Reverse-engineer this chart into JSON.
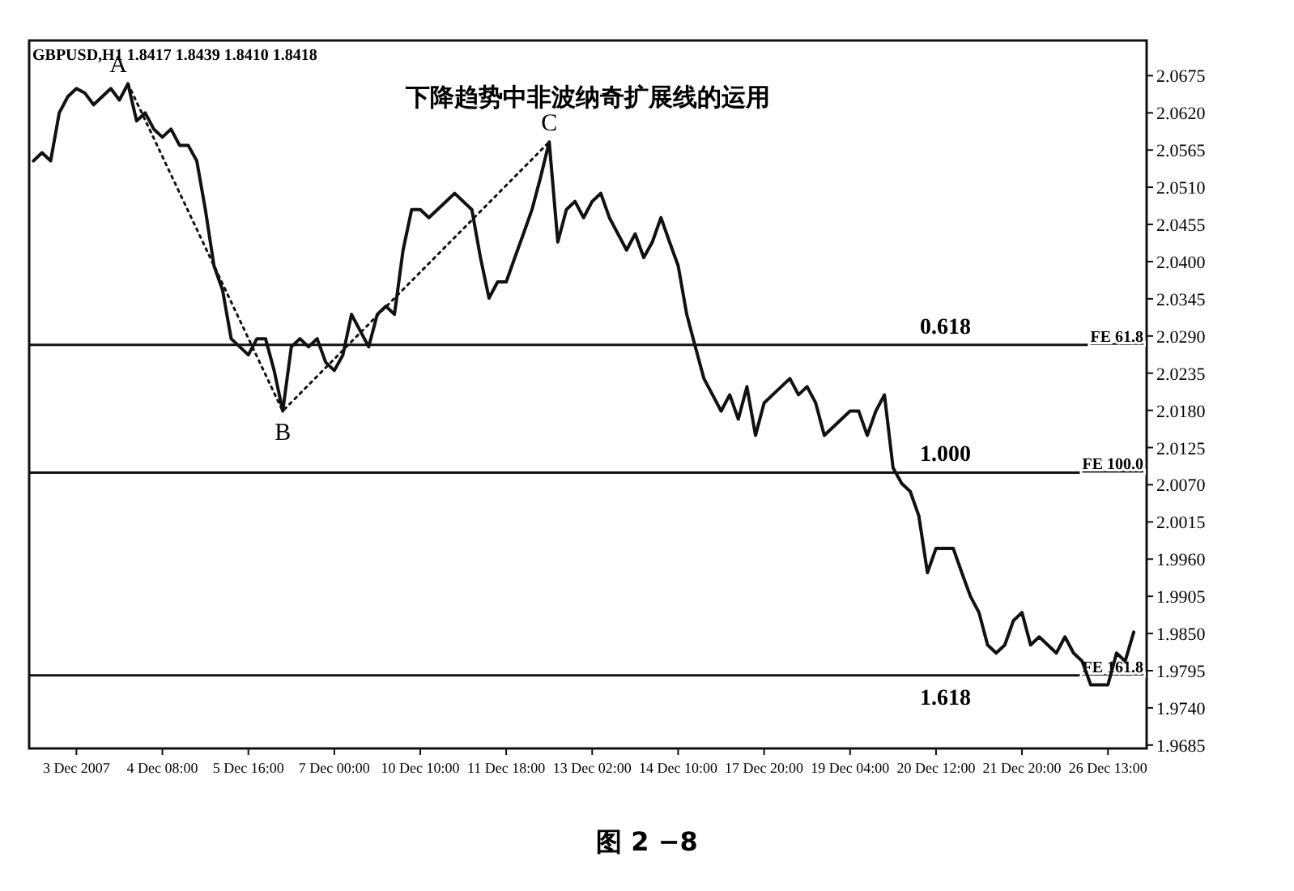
{
  "chart_data": {
    "type": "line",
    "title": "下降趋势中非波纳奇扩展线的运用",
    "subtitle": "GBPUSD,H1 1.8417 1.8439 1.8410 1.8418",
    "annotations": [
      {
        "text": "A",
        "y": 2.0663
      },
      {
        "text": "B",
        "y": 2.0179
      },
      {
        "text": "C",
        "y": 2.0577
      },
      {
        "text": "0.618",
        "y": 2.0277
      },
      {
        "text": "1.000",
        "y": 2.0088
      },
      {
        "text": "1.618",
        "y": 1.9788
      },
      "图 2 −8"
    ],
    "categories": [
      null,
      null,
      null,
      null,
      null,
      "3 Dec 2007",
      null,
      null,
      null,
      null,
      null,
      null,
      null,
      null,
      null,
      "4 Dec 08:00",
      null,
      null,
      null,
      null,
      null,
      null,
      null,
      null,
      null,
      "5 Dec 16:00",
      null,
      null,
      null,
      null,
      null,
      null,
      null,
      null,
      null,
      "7 Dec 00:00",
      null,
      null,
      null,
      null,
      null,
      null,
      null,
      null,
      null,
      "10 Dec 10:00",
      null,
      null,
      null,
      null,
      null,
      null,
      null,
      null,
      null,
      "11 Dec 18:00",
      null,
      null,
      null,
      null,
      null,
      null,
      null,
      null,
      null,
      "13 Dec 02:00",
      null,
      null,
      null,
      null,
      null,
      null,
      null,
      null,
      null,
      "14 Dec 10:00",
      null,
      null,
      null,
      null,
      null,
      null,
      null,
      null,
      null,
      "17 Dec 20:00",
      null,
      null,
      null,
      null,
      null,
      null,
      null,
      null,
      null,
      "19 Dec 04:00",
      null,
      null,
      null,
      null,
      null,
      null,
      null,
      null,
      null,
      "20 Dec 12:00",
      null,
      null,
      null,
      null,
      null,
      null,
      null,
      null,
      null,
      "21 Dec 20:00",
      null,
      null,
      null,
      null,
      null,
      null,
      null,
      null,
      null,
      "26 Dec 13:00",
      null,
      null,
      null
    ],
    "series": [
      {
        "color": "#111111",
        "values": [
          2.0549,
          2.0561,
          2.0549,
          2.062,
          2.0644,
          2.0656,
          2.0649,
          2.0632,
          2.0644,
          2.0656,
          2.0639,
          2.0663,
          2.0608,
          2.062,
          2.0596,
          2.0584,
          2.0596,
          2.0572,
          2.0572,
          2.0549,
          2.0477,
          2.0394,
          2.0358,
          2.0286,
          2.0274,
          2.0262,
          2.0286,
          2.0286,
          2.0239,
          2.0179,
          2.0274,
          2.0286,
          2.0274,
          2.0286,
          2.0251,
          2.0239,
          2.0262,
          2.0322,
          2.0298,
          2.0274,
          2.0322,
          2.0334,
          2.0322,
          2.0417,
          2.0477,
          2.0477,
          2.0465,
          2.0477,
          2.0489,
          2.0501,
          2.0489,
          2.0477,
          2.0406,
          2.0346,
          2.037,
          2.037,
          2.0406,
          2.0441,
          2.0477,
          2.0525,
          2.0577,
          2.0429,
          2.0477,
          2.0489,
          2.0465,
          2.0489,
          2.0501,
          2.0465,
          2.0441,
          2.0417,
          2.0441,
          2.0406,
          2.0429,
          2.0465,
          2.0429,
          2.0394,
          2.0322,
          2.0274,
          2.0227,
          2.0203,
          2.0179,
          2.0203,
          2.0167,
          2.0215,
          2.0143,
          2.0191,
          2.0203,
          2.0215,
          2.0227,
          2.0203,
          2.0215,
          2.0191,
          2.0143,
          2.0155,
          2.0167,
          2.0179,
          2.0179,
          2.0143,
          2.0179,
          2.0203,
          2.0095,
          2.0072,
          2.006,
          2.0024,
          1.994,
          1.9976,
          1.9976,
          1.9976,
          1.994,
          1.9905,
          1.9881,
          1.9833,
          1.9821,
          1.9833,
          1.9869,
          1.9881,
          1.9833,
          1.9845,
          1.9833,
          1.9821,
          1.9845,
          1.9821,
          1.9809,
          1.9774,
          1.9774,
          1.9774,
          1.9821,
          1.9809,
          1.9852
        ]
      },
      {
        "color": "#111111",
        "line_style": "dotted",
        "values": [
          null,
          null,
          null,
          null,
          null,
          null,
          null,
          null,
          null,
          null,
          null,
          2.0663,
          null,
          null,
          null,
          null,
          null,
          null,
          null,
          null,
          null,
          null,
          null,
          null,
          null,
          null,
          null,
          null,
          null,
          2.0179,
          null,
          null,
          null,
          null,
          null,
          null,
          null,
          null,
          null,
          null,
          null,
          null,
          null,
          null,
          null,
          null,
          null,
          null,
          null,
          null,
          null,
          null,
          null,
          null,
          null,
          null,
          null,
          null,
          null,
          null,
          2.0577,
          null,
          null,
          null,
          null,
          null,
          null,
          null,
          null,
          null,
          null,
          null,
          null,
          null,
          null,
          null,
          null,
          null,
          null,
          null,
          null,
          null,
          null,
          null,
          null,
          null,
          null,
          null,
          null,
          null,
          null,
          null,
          null,
          null,
          null,
          null,
          null,
          null,
          null,
          null,
          null,
          null,
          null,
          null,
          null,
          null,
          null,
          null,
          null,
          null,
          null,
          null,
          null,
          null,
          null,
          null,
          null,
          null,
          null,
          null,
          null,
          null,
          null,
          null,
          null,
          null,
          null,
          null,
          null
        ]
      }
    ],
    "ylim": [
      1.968,
      2.0727
    ],
    "yticks": [
      {
        "value": 2.0675,
        "label": "2.0675"
      },
      {
        "value": 2.062,
        "label": "2.0620"
      },
      {
        "value": 2.0565,
        "label": "2.0565"
      },
      {
        "value": 2.051,
        "label": "2.0510"
      },
      {
        "value": 2.0455,
        "label": "2.0455"
      },
      {
        "value": 2.04,
        "label": "2.0400"
      },
      {
        "value": 2.0345,
        "label": "2.0345"
      },
      {
        "value": 2.029,
        "label": "2.0290"
      },
      {
        "value": 2.0235,
        "label": "2.0235"
      },
      {
        "value": 2.018,
        "label": "2.0180"
      },
      {
        "value": 2.0125,
        "label": "2.0125"
      },
      {
        "value": 2.007,
        "label": "2.0070"
      },
      {
        "value": 2.0015,
        "label": "2.0015"
      },
      {
        "value": 1.996,
        "label": "1.9960"
      },
      {
        "value": 1.9905,
        "label": "1.9905"
      },
      {
        "value": 1.985,
        "label": "1.9850"
      },
      {
        "value": 1.9795,
        "label": "1.9795"
      },
      {
        "value": 1.974,
        "label": "1.9740"
      },
      {
        "value": 1.9685,
        "label": "1.9685"
      }
    ],
    "ref_lines": [
      {
        "axis": "y",
        "value": 2.0277,
        "label": "FE 61.8",
        "color": "#111111"
      },
      {
        "axis": "y",
        "value": 2.0088,
        "label": "FE 100.0",
        "color": "#111111"
      },
      {
        "axis": "y",
        "value": 1.9788,
        "label": "FE 161.8",
        "color": "#111111"
      }
    ],
    "grid": false,
    "marker": "none"
  }
}
